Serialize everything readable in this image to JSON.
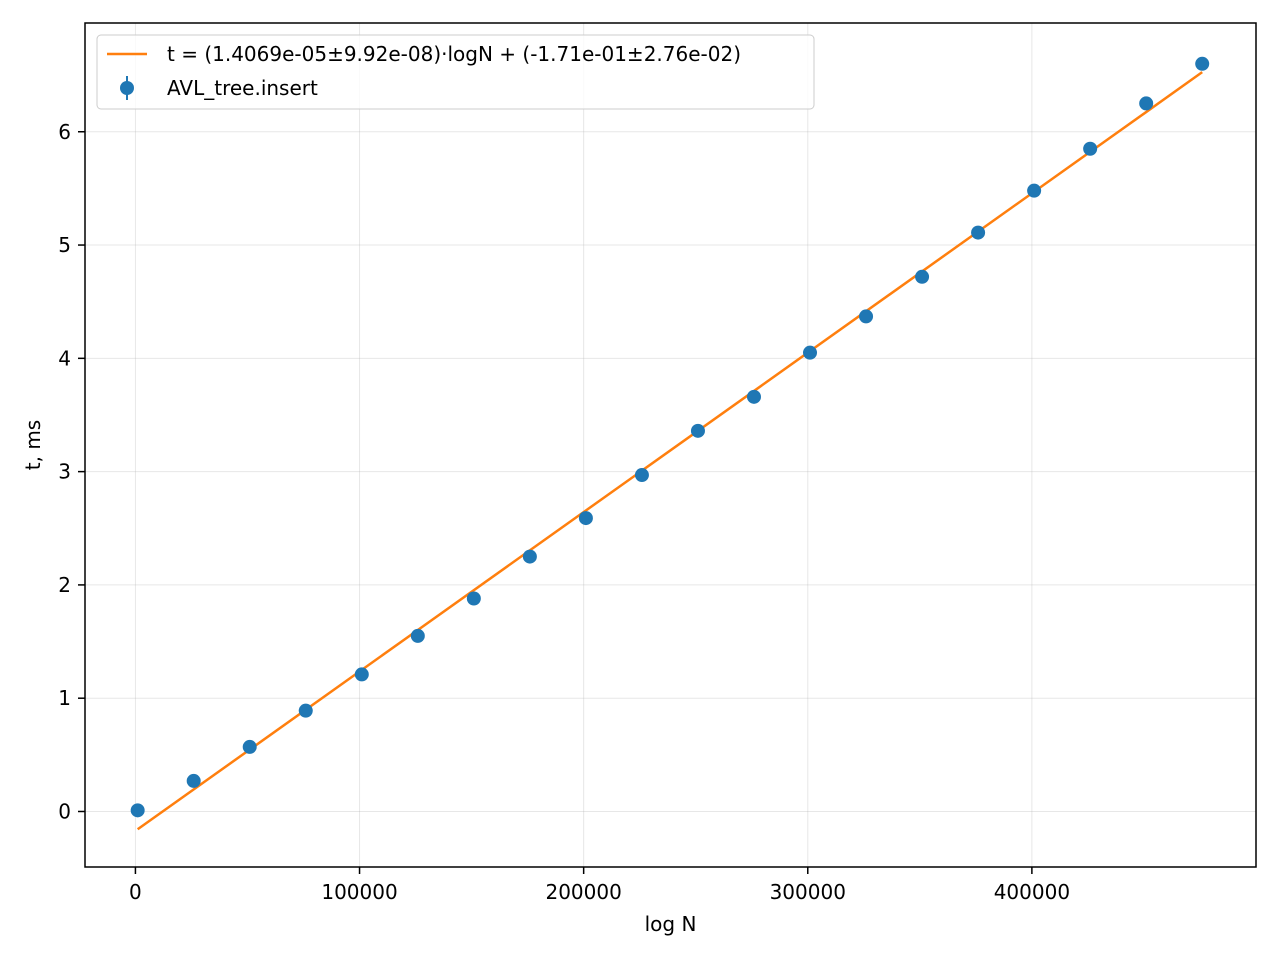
{
  "chart_data": {
    "type": "scatter",
    "xlabel": "log N",
    "ylabel": "t, ms",
    "xlim": [
      -22500,
      500000
    ],
    "ylim": [
      -0.49,
      6.96
    ],
    "xticks": [
      0,
      100000,
      200000,
      300000,
      400000
    ],
    "xtick_labels": [
      "0",
      "100000",
      "200000",
      "300000",
      "400000"
    ],
    "yticks": [
      0,
      1,
      2,
      3,
      4,
      5,
      6
    ],
    "ytick_labels": [
      "0",
      "1",
      "2",
      "3",
      "4",
      "5",
      "6"
    ],
    "grid": true,
    "legend_position": "top-left",
    "series": [
      {
        "name": "AVL_tree.insert",
        "kind": "errorbar-points",
        "color": "#1f77b4",
        "x": [
          1000,
          26000,
          51000,
          76000,
          101000,
          126000,
          151000,
          176000,
          201000,
          226000,
          251000,
          276000,
          301000,
          326000,
          351000,
          376000,
          401000,
          426000,
          451000,
          476000
        ],
        "y": [
          0.01,
          0.27,
          0.57,
          0.89,
          1.21,
          1.55,
          1.88,
          2.25,
          2.59,
          2.97,
          3.36,
          3.66,
          4.05,
          4.37,
          4.72,
          5.11,
          5.48,
          5.85,
          6.25,
          6.6
        ]
      },
      {
        "name": "t = (1.4069e-05±9.92e-08)·logN + (-1.71e-01±2.76e-02)",
        "kind": "fit-line",
        "color": "#ff7f0e",
        "x": [
          1000,
          476000
        ],
        "y": [
          -0.157,
          6.526
        ]
      }
    ]
  }
}
